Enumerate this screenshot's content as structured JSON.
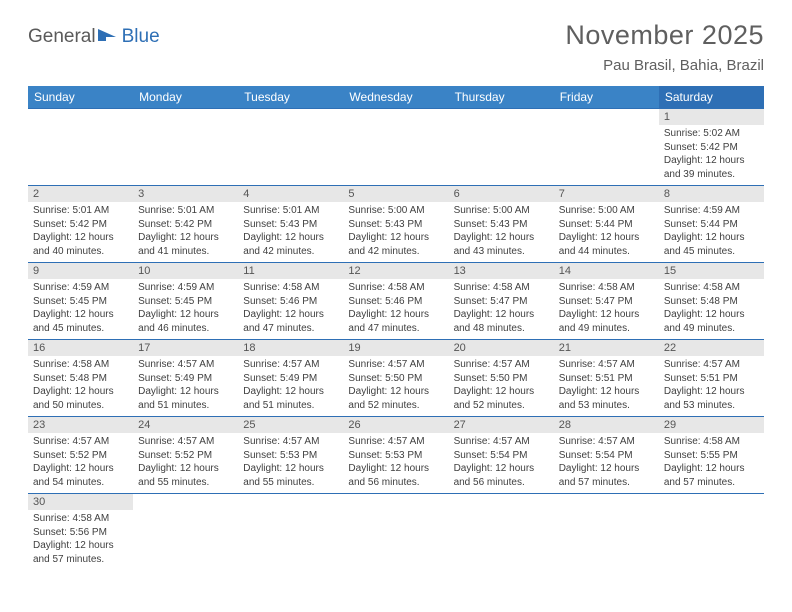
{
  "logo": {
    "part1": "General",
    "part2": "Blue"
  },
  "title": "November 2025",
  "location": "Pau Brasil, Bahia, Brazil",
  "colors": {
    "header_bg": "#3a83c6",
    "header_sat_bg": "#2e6fb5",
    "header_fg": "#ffffff",
    "border": "#2e6fb5",
    "daynum_bg": "#e7e7e7",
    "text": "#3f3f3f"
  },
  "weekdays": [
    "Sunday",
    "Monday",
    "Tuesday",
    "Wednesday",
    "Thursday",
    "Friday",
    "Saturday"
  ],
  "grid": [
    [
      null,
      null,
      null,
      null,
      null,
      null,
      {
        "n": "1",
        "sr": "5:02 AM",
        "ss": "5:42 PM",
        "dl": "12 hours and 39 minutes."
      }
    ],
    [
      {
        "n": "2",
        "sr": "5:01 AM",
        "ss": "5:42 PM",
        "dl": "12 hours and 40 minutes."
      },
      {
        "n": "3",
        "sr": "5:01 AM",
        "ss": "5:42 PM",
        "dl": "12 hours and 41 minutes."
      },
      {
        "n": "4",
        "sr": "5:01 AM",
        "ss": "5:43 PM",
        "dl": "12 hours and 42 minutes."
      },
      {
        "n": "5",
        "sr": "5:00 AM",
        "ss": "5:43 PM",
        "dl": "12 hours and 42 minutes."
      },
      {
        "n": "6",
        "sr": "5:00 AM",
        "ss": "5:43 PM",
        "dl": "12 hours and 43 minutes."
      },
      {
        "n": "7",
        "sr": "5:00 AM",
        "ss": "5:44 PM",
        "dl": "12 hours and 44 minutes."
      },
      {
        "n": "8",
        "sr": "4:59 AM",
        "ss": "5:44 PM",
        "dl": "12 hours and 45 minutes."
      }
    ],
    [
      {
        "n": "9",
        "sr": "4:59 AM",
        "ss": "5:45 PM",
        "dl": "12 hours and 45 minutes."
      },
      {
        "n": "10",
        "sr": "4:59 AM",
        "ss": "5:45 PM",
        "dl": "12 hours and 46 minutes."
      },
      {
        "n": "11",
        "sr": "4:58 AM",
        "ss": "5:46 PM",
        "dl": "12 hours and 47 minutes."
      },
      {
        "n": "12",
        "sr": "4:58 AM",
        "ss": "5:46 PM",
        "dl": "12 hours and 47 minutes."
      },
      {
        "n": "13",
        "sr": "4:58 AM",
        "ss": "5:47 PM",
        "dl": "12 hours and 48 minutes."
      },
      {
        "n": "14",
        "sr": "4:58 AM",
        "ss": "5:47 PM",
        "dl": "12 hours and 49 minutes."
      },
      {
        "n": "15",
        "sr": "4:58 AM",
        "ss": "5:48 PM",
        "dl": "12 hours and 49 minutes."
      }
    ],
    [
      {
        "n": "16",
        "sr": "4:58 AM",
        "ss": "5:48 PM",
        "dl": "12 hours and 50 minutes."
      },
      {
        "n": "17",
        "sr": "4:57 AM",
        "ss": "5:49 PM",
        "dl": "12 hours and 51 minutes."
      },
      {
        "n": "18",
        "sr": "4:57 AM",
        "ss": "5:49 PM",
        "dl": "12 hours and 51 minutes."
      },
      {
        "n": "19",
        "sr": "4:57 AM",
        "ss": "5:50 PM",
        "dl": "12 hours and 52 minutes."
      },
      {
        "n": "20",
        "sr": "4:57 AM",
        "ss": "5:50 PM",
        "dl": "12 hours and 52 minutes."
      },
      {
        "n": "21",
        "sr": "4:57 AM",
        "ss": "5:51 PM",
        "dl": "12 hours and 53 minutes."
      },
      {
        "n": "22",
        "sr": "4:57 AM",
        "ss": "5:51 PM",
        "dl": "12 hours and 53 minutes."
      }
    ],
    [
      {
        "n": "23",
        "sr": "4:57 AM",
        "ss": "5:52 PM",
        "dl": "12 hours and 54 minutes."
      },
      {
        "n": "24",
        "sr": "4:57 AM",
        "ss": "5:52 PM",
        "dl": "12 hours and 55 minutes."
      },
      {
        "n": "25",
        "sr": "4:57 AM",
        "ss": "5:53 PM",
        "dl": "12 hours and 55 minutes."
      },
      {
        "n": "26",
        "sr": "4:57 AM",
        "ss": "5:53 PM",
        "dl": "12 hours and 56 minutes."
      },
      {
        "n": "27",
        "sr": "4:57 AM",
        "ss": "5:54 PM",
        "dl": "12 hours and 56 minutes."
      },
      {
        "n": "28",
        "sr": "4:57 AM",
        "ss": "5:54 PM",
        "dl": "12 hours and 57 minutes."
      },
      {
        "n": "29",
        "sr": "4:58 AM",
        "ss": "5:55 PM",
        "dl": "12 hours and 57 minutes."
      }
    ],
    [
      {
        "n": "30",
        "sr": "4:58 AM",
        "ss": "5:56 PM",
        "dl": "12 hours and 57 minutes."
      },
      null,
      null,
      null,
      null,
      null,
      null
    ]
  ],
  "labels": {
    "sunrise": "Sunrise:",
    "sunset": "Sunset:",
    "daylight": "Daylight:"
  }
}
